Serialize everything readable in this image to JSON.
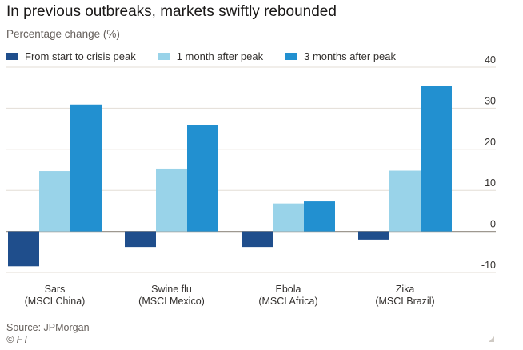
{
  "chart_data": {
    "type": "bar",
    "title": "In previous outbreaks, markets swiftly rebounded",
    "subtitle": "Percentage change (%)",
    "categories": [
      {
        "name": "Sars",
        "index": "(MSCI China)"
      },
      {
        "name": "Swine flu",
        "index": "(MSCI Mexico)"
      },
      {
        "name": "Ebola",
        "index": "(MSCI Africa)"
      },
      {
        "name": "Zika",
        "index": "(MSCI Brazil)"
      }
    ],
    "series": [
      {
        "name": "From start to crisis peak",
        "color": "#1f4e8c",
        "values": [
          -8.5,
          -3.8,
          -3.8,
          -2.0
        ]
      },
      {
        "name": "1 month after peak",
        "color": "#99d3e9",
        "values": [
          14.7,
          15.3,
          6.8,
          14.8
        ]
      },
      {
        "name": "3 months after peak",
        "color": "#2290d0",
        "values": [
          30.9,
          25.8,
          7.3,
          35.4
        ]
      }
    ],
    "ylim": [
      -10,
      40
    ],
    "yticks": [
      40,
      30,
      20,
      10,
      0,
      -10
    ],
    "ytick_labels": [
      "40",
      "30",
      "20",
      "10",
      "0",
      "-10"
    ],
    "yaxis_position": "right",
    "grid": true,
    "legend_position": "top-left"
  },
  "footer": {
    "source": "Source: JPMorgan",
    "copyright": "© FT"
  }
}
